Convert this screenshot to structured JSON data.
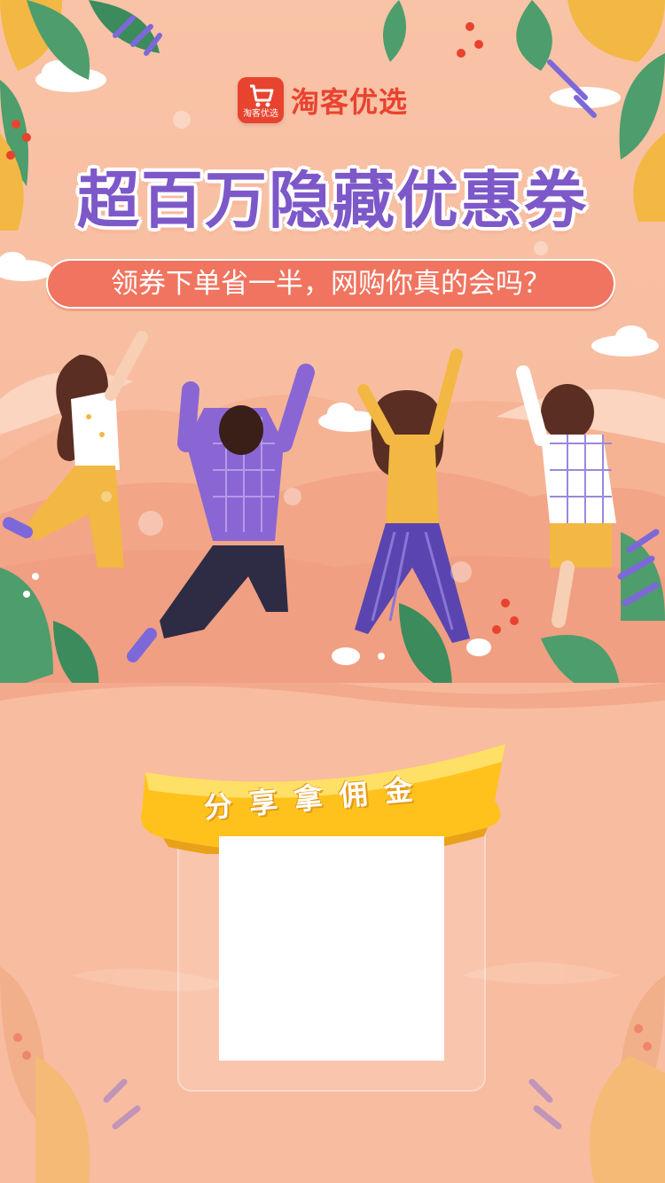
{
  "brand": {
    "name": "淘客优选",
    "badge_text": "淘客优选",
    "color": "#e8432f"
  },
  "headline": "超百万隐藏优惠券",
  "subheadline": "领券下单省一半，网购你真的会吗？",
  "ribbon_label": "分享拿佣金",
  "colors": {
    "headline": "#7d58c9",
    "subheadline_bg": "#f0745f",
    "ribbon": "#ffc21d",
    "background": "#f8bda0"
  },
  "qr_code": {
    "content": ""
  }
}
